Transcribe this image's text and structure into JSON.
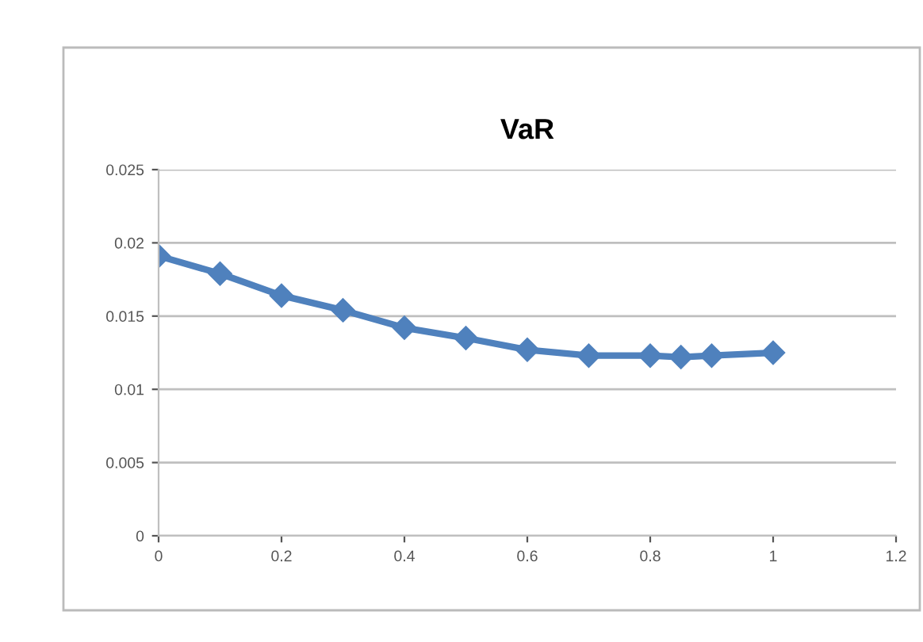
{
  "chart_data": {
    "type": "line",
    "title": "VaR",
    "x": [
      0,
      0.1,
      0.2,
      0.3,
      0.4,
      0.5,
      0.6,
      0.7,
      0.8,
      0.85,
      0.9,
      1
    ],
    "series": [
      {
        "color": "#4f81bd",
        "values": [
          0.0191,
          0.0179,
          0.0164,
          0.0154,
          0.0142,
          0.0135,
          0.0127,
          0.0123,
          0.0123,
          0.0122,
          0.0123,
          0.0125
        ]
      }
    ],
    "xlim": [
      0,
      1.2
    ],
    "xticks": [
      0,
      0.2,
      0.4,
      0.6,
      0.8,
      1,
      1.2
    ],
    "ylim": [
      0,
      0.025
    ],
    "yticks": [
      0,
      0.005,
      0.01,
      0.015,
      0.02,
      0.025
    ],
    "grid": "y",
    "marker": "diamond",
    "line_style": "solid",
    "legend": false
  }
}
